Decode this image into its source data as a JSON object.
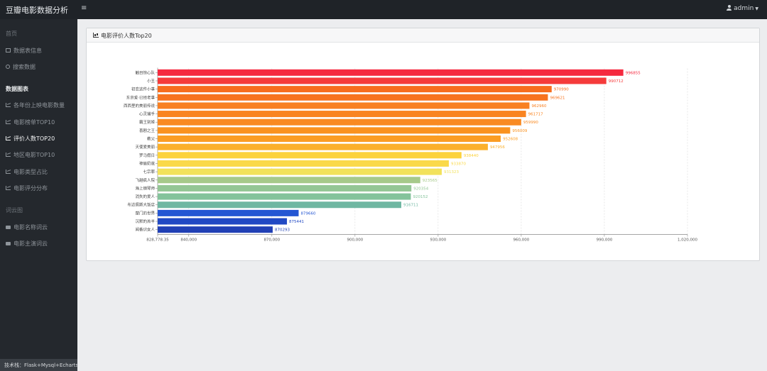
{
  "app": {
    "title": "豆瓣电影数据分析",
    "menu_icon": "hamburger-icon"
  },
  "user": {
    "name": "admin",
    "icon": "user-icon"
  },
  "sidebar": {
    "headings": [
      "首页",
      "数据图表",
      "词云图"
    ],
    "items": [
      {
        "label": "数据表信息",
        "icon": "table-icon"
      },
      {
        "label": "搜索数据",
        "icon": "search-icon"
      },
      {
        "label": "各年份上映电影数量",
        "icon": "chart-icon"
      },
      {
        "label": "电影榜单TOP10",
        "icon": "chart-icon"
      },
      {
        "label": "评价人数TOP20",
        "icon": "chart-icon",
        "active": true
      },
      {
        "label": "地区电影TOP10",
        "icon": "chart-icon"
      },
      {
        "label": "电影类型占比",
        "icon": "chart-icon"
      },
      {
        "label": "电影评分分布",
        "icon": "chart-icon"
      },
      {
        "label": "电影名称词云",
        "icon": "cloud-icon"
      },
      {
        "label": "电影主演词云",
        "icon": "cloud-icon"
      }
    ],
    "footer": "技术栈：Flask+Mysql+Echarts"
  },
  "panel": {
    "title": "电影评价人数Top20",
    "icon": "bar-chart-icon"
  },
  "chart_data": {
    "type": "bar",
    "orientation": "horizontal",
    "categories": [
      "触目惊心队",
      "小丑",
      "初恋这件小事",
      "东京爱·已经老事",
      "西西里的美丽传说",
      "心灵捕手",
      "霸王别姬",
      "喜剧之王",
      "教父",
      "天使爱美丽",
      "罗马假日",
      "神偷奶爸",
      "七宗罪",
      "飞越疯人院",
      "海上钢琴师",
      "消失的爱人",
      "布达佩斯大饭店",
      "楚门的世界",
      "沉默的羔羊",
      "闻香识女人"
    ],
    "values": [
      996855,
      990712,
      970990,
      969621,
      962960,
      961717,
      959990,
      956009,
      952608,
      947956,
      938440,
      933870,
      931323,
      923565,
      920354,
      920152,
      916711,
      879660,
      875441,
      870293
    ],
    "value_labels": [
      "996855",
      "990712",
      "970990",
      "969621",
      "962960",
      "961717",
      "959990",
      "956009",
      "952608",
      "947956",
      "938440",
      "933870",
      "931323",
      "923565",
      "920354",
      "920152",
      "916711",
      "879660",
      "875441",
      "870293"
    ],
    "colors": [
      "#f5293f",
      "#f53b3b",
      "#f76d1d",
      "#f7731f",
      "#f88022",
      "#f98421",
      "#f98a22",
      "#fa921f",
      "#fb9d23",
      "#fbb02c",
      "#fcd23c",
      "#fad94a",
      "#f2e25b",
      "#a6c98a",
      "#94c695",
      "#84c39b",
      "#6fb7a2",
      "#2456d3",
      "#2149c4",
      "#2140b5"
    ],
    "x_ticks": [
      "828,778.35",
      "840,000",
      "870,000",
      "900,000",
      "930,000",
      "960,000",
      "990,000",
      "1,020,000"
    ],
    "xlim": [
      828778.35,
      1020000
    ],
    "grid": "vertical-dashed"
  }
}
